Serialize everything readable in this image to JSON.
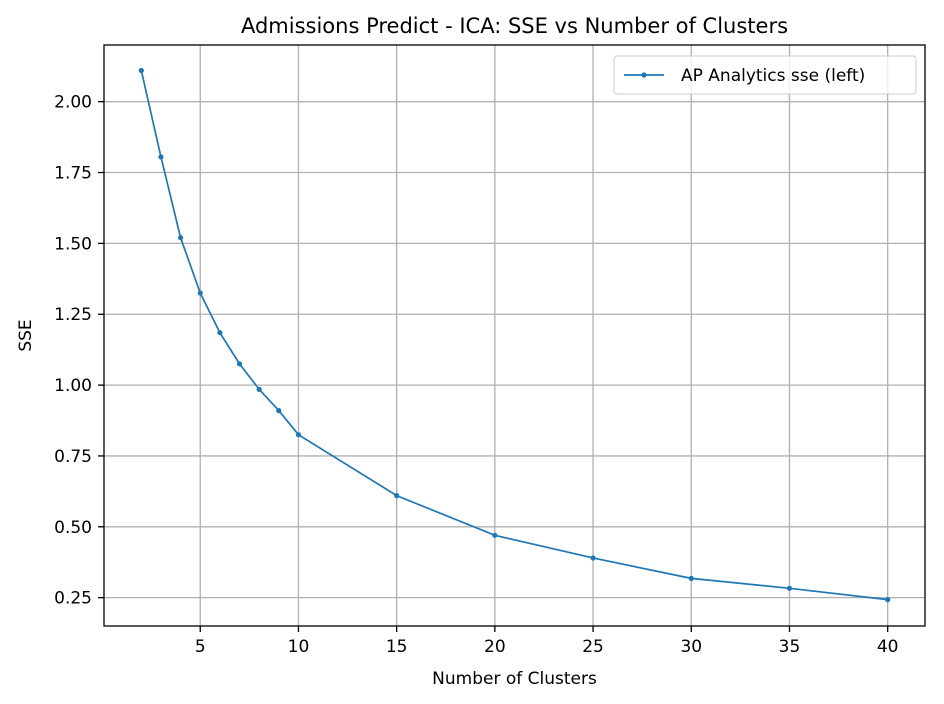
{
  "chart_data": {
    "type": "line",
    "title": "Admissions Predict - ICA: SSE vs Number of Clusters",
    "xlabel": "Number of Clusters",
    "ylabel": "SSE",
    "xlim": [
      0.1,
      41.9
    ],
    "ylim": [
      0.15,
      2.2
    ],
    "xticks": [
      5,
      10,
      15,
      20,
      25,
      30,
      35,
      40
    ],
    "yticks": [
      0.25,
      0.5,
      0.75,
      1.0,
      1.25,
      1.5,
      1.75,
      2.0
    ],
    "xtick_labels": [
      "5",
      "10",
      "15",
      "20",
      "25",
      "30",
      "35",
      "40"
    ],
    "ytick_labels": [
      "0.25",
      "0.50",
      "0.75",
      "1.00",
      "1.25",
      "1.50",
      "1.75",
      "2.00"
    ],
    "grid": true,
    "legend_position": "top-right",
    "series": [
      {
        "name": "AP Analytics sse (left)",
        "color": "#1f77b4",
        "x": [
          2,
          3,
          4,
          5,
          6,
          7,
          8,
          9,
          10,
          15,
          20,
          25,
          30,
          35,
          40
        ],
        "y": [
          2.11,
          1.805,
          1.52,
          1.325,
          1.185,
          1.075,
          0.985,
          0.91,
          0.825,
          0.61,
          0.47,
          0.39,
          0.318,
          0.283,
          0.243
        ]
      }
    ]
  }
}
